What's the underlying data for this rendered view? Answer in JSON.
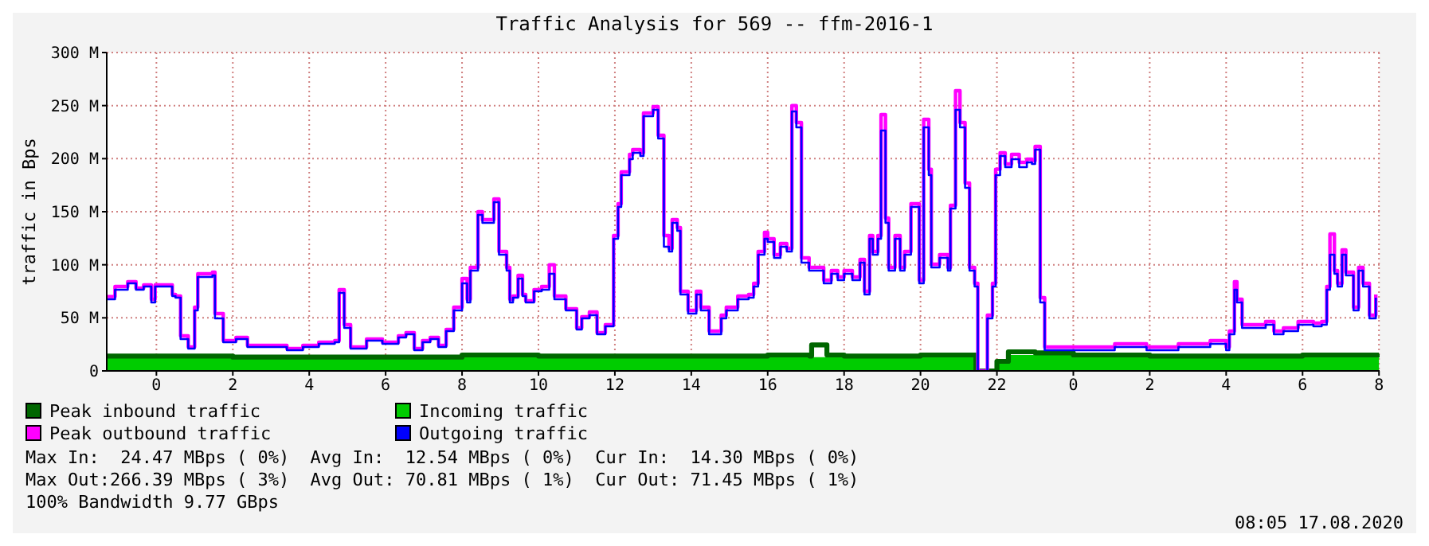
{
  "chart_data": {
    "type": "step",
    "title": "Traffic Analysis for 569 -- ffm-2016-1",
    "ylabel": "traffic in Bps",
    "xlim": [
      "2020-08-15T22:42",
      "2020-08-17T08:01"
    ],
    "xticks": [
      {
        "value": "2020-08-16T00:00",
        "label": "0"
      },
      {
        "value": "2020-08-16T02:00",
        "label": "2"
      },
      {
        "value": "2020-08-16T04:00",
        "label": "4"
      },
      {
        "value": "2020-08-16T06:00",
        "label": "6"
      },
      {
        "value": "2020-08-16T08:00",
        "label": "8"
      },
      {
        "value": "2020-08-16T10:00",
        "label": "10"
      },
      {
        "value": "2020-08-16T12:00",
        "label": "12"
      },
      {
        "value": "2020-08-16T14:00",
        "label": "14"
      },
      {
        "value": "2020-08-16T16:00",
        "label": "16"
      },
      {
        "value": "2020-08-16T18:00",
        "label": "18"
      },
      {
        "value": "2020-08-16T20:00",
        "label": "20"
      },
      {
        "value": "2020-08-16T22:00",
        "label": "22"
      },
      {
        "value": "2020-08-17T00:00",
        "label": "0"
      },
      {
        "value": "2020-08-17T02:00",
        "label": "2"
      },
      {
        "value": "2020-08-17T04:00",
        "label": "4"
      },
      {
        "value": "2020-08-17T06:00",
        "label": "6"
      },
      {
        "value": "2020-08-17T08:00",
        "label": "8"
      }
    ],
    "ylim": [
      0,
      300
    ],
    "yticks": [
      0,
      {
        "value": 50,
        "label": "50 M"
      },
      {
        "value": 100,
        "label": "100 M"
      },
      {
        "value": 150,
        "label": "150 M"
      },
      {
        "value": 200,
        "label": "200 M"
      },
      {
        "value": 250,
        "label": "250 M"
      },
      {
        "value": 300,
        "label": "300 M"
      }
    ],
    "grid": true,
    "legend": "bottom",
    "x": [
      "2020-08-15T22:43",
      "2020-08-15T22:55",
      "2020-08-15T23:15",
      "2020-08-15T23:28",
      "2020-08-15T23:40",
      "2020-08-15T23:52",
      "2020-08-15T23:58",
      "2020-08-16T00:25",
      "2020-08-16T00:30",
      "2020-08-16T00:38",
      "2020-08-16T00:50",
      "2020-08-16T01:00",
      "2020-08-16T01:05",
      "2020-08-16T01:28",
      "2020-08-16T01:32",
      "2020-08-16T01:45",
      "2020-08-16T02:05",
      "2020-08-16T02:23",
      "2020-08-16T02:47",
      "2020-08-16T03:25",
      "2020-08-16T03:50",
      "2020-08-16T04:15",
      "2020-08-16T04:40",
      "2020-08-16T04:47",
      "2020-08-16T04:55",
      "2020-08-16T05:05",
      "2020-08-16T05:30",
      "2020-08-16T05:55",
      "2020-08-16T06:20",
      "2020-08-16T06:32",
      "2020-08-16T06:45",
      "2020-08-16T06:58",
      "2020-08-16T07:10",
      "2020-08-16T07:23",
      "2020-08-16T07:35",
      "2020-08-16T07:47",
      "2020-08-16T08:00",
      "2020-08-16T08:08",
      "2020-08-16T08:13",
      "2020-08-16T08:25",
      "2020-08-16T08:32",
      "2020-08-16T08:50",
      "2020-08-16T08:58",
      "2020-08-16T09:10",
      "2020-08-16T09:15",
      "2020-08-16T09:20",
      "2020-08-16T09:28",
      "2020-08-16T09:35",
      "2020-08-16T09:40",
      "2020-08-16T09:53",
      "2020-08-16T10:05",
      "2020-08-16T10:17",
      "2020-08-16T10:25",
      "2020-08-16T10:43",
      "2020-08-16T11:00",
      "2020-08-16T11:08",
      "2020-08-16T11:20",
      "2020-08-16T11:32",
      "2020-08-16T11:45",
      "2020-08-16T11:58",
      "2020-08-16T12:05",
      "2020-08-16T12:10",
      "2020-08-16T12:23",
      "2020-08-16T12:28",
      "2020-08-16T12:40",
      "2020-08-16T12:45",
      "2020-08-16T13:00",
      "2020-08-16T13:08",
      "2020-08-16T13:17",
      "2020-08-16T13:25",
      "2020-08-16T13:30",
      "2020-08-16T13:38",
      "2020-08-16T13:43",
      "2020-08-16T13:55",
      "2020-08-16T14:08",
      "2020-08-16T14:15",
      "2020-08-16T14:28",
      "2020-08-16T14:40",
      "2020-08-16T14:47",
      "2020-08-16T14:55",
      "2020-08-16T15:05",
      "2020-08-16T15:13",
      "2020-08-16T15:30",
      "2020-08-16T15:38",
      "2020-08-16T15:45",
      "2020-08-16T15:55",
      "2020-08-16T16:00",
      "2020-08-16T16:10",
      "2020-08-16T16:20",
      "2020-08-16T16:30",
      "2020-08-16T16:38",
      "2020-08-16T16:45",
      "2020-08-16T16:53",
      "2020-08-16T17:05",
      "2020-08-16T17:17",
      "2020-08-16T17:28",
      "2020-08-16T17:40",
      "2020-08-16T17:50",
      "2020-08-16T18:00",
      "2020-08-16T18:13",
      "2020-08-16T18:25",
      "2020-08-16T18:32",
      "2020-08-16T18:40",
      "2020-08-16T18:45",
      "2020-08-16T18:53",
      "2020-08-16T18:58",
      "2020-08-16T19:05",
      "2020-08-16T19:10",
      "2020-08-16T19:20",
      "2020-08-16T19:28",
      "2020-08-16T19:35",
      "2020-08-16T19:45",
      "2020-08-16T19:53",
      "2020-08-16T19:58",
      "2020-08-16T20:05",
      "2020-08-16T20:13",
      "2020-08-16T20:17",
      "2020-08-16T20:30",
      "2020-08-16T20:43",
      "2020-08-16T20:47",
      "2020-08-16T20:55",
      "2020-08-16T21:02",
      "2020-08-16T21:10",
      "2020-08-16T21:17",
      "2020-08-16T21:25",
      "2020-08-16T21:30",
      "2020-08-16T21:40",
      "2020-08-16T21:45",
      "2020-08-16T21:53",
      "2020-08-16T21:58",
      "2020-08-16T22:05",
      "2020-08-16T22:13",
      "2020-08-16T22:23",
      "2020-08-16T22:35",
      "2020-08-16T22:47",
      "2020-08-16T22:55",
      "2020-08-16T23:00",
      "2020-08-16T23:08",
      "2020-08-16T23:15",
      "2020-08-16T23:50",
      "2020-08-17T00:40",
      "2020-08-17T01:05",
      "2020-08-17T01:55",
      "2020-08-17T02:45",
      "2020-08-17T03:35",
      "2020-08-17T04:00",
      "2020-08-17T04:05",
      "2020-08-17T04:13",
      "2020-08-17T04:17",
      "2020-08-17T04:25",
      "2020-08-17T05:02",
      "2020-08-17T05:15",
      "2020-08-17T05:30",
      "2020-08-17T05:53",
      "2020-08-17T06:17",
      "2020-08-17T06:30",
      "2020-08-17T06:38",
      "2020-08-17T06:43",
      "2020-08-17T06:50",
      "2020-08-17T06:55",
      "2020-08-17T07:02",
      "2020-08-17T07:08",
      "2020-08-17T07:20",
      "2020-08-17T07:28",
      "2020-08-17T07:35",
      "2020-08-17T07:45",
      "2020-08-17T07:55"
    ],
    "series": [
      {
        "name": "Peak inbound traffic",
        "color": "#006600",
        "x": [
          "2020-08-15T22:42",
          "2020-08-16T00:00",
          "2020-08-16T02:00",
          "2020-08-16T04:00",
          "2020-08-16T06:00",
          "2020-08-16T08:00",
          "2020-08-16T10:00",
          "2020-08-16T12:00",
          "2020-08-16T14:00",
          "2020-08-16T16:00",
          "2020-08-16T17:06",
          "2020-08-16T17:09",
          "2020-08-16T17:30",
          "2020-08-16T17:33",
          "2020-08-16T18:00",
          "2020-08-16T20:00",
          "2020-08-16T21:24",
          "2020-08-16T21:27",
          "2020-08-16T21:54",
          "2020-08-16T22:00",
          "2020-08-16T22:18",
          "2020-08-16T23:00",
          "2020-08-17T00:00",
          "2020-08-17T02:00",
          "2020-08-17T04:00",
          "2020-08-17T06:00",
          "2020-08-17T08:00"
        ],
        "values": [
          14,
          14,
          13,
          13,
          13,
          15,
          14,
          14,
          14,
          15,
          14,
          24.47,
          24.47,
          15,
          14,
          15,
          15,
          0,
          0,
          9,
          18,
          17,
          15,
          14,
          14,
          15,
          16
        ]
      },
      {
        "name": "Incoming traffic",
        "type": "area",
        "color": "#00cc00",
        "x": [
          "2020-08-15T22:42",
          "2020-08-16T00:00",
          "2020-08-16T02:00",
          "2020-08-16T04:00",
          "2020-08-16T06:00",
          "2020-08-16T08:00",
          "2020-08-16T10:00",
          "2020-08-16T12:00",
          "2020-08-16T14:00",
          "2020-08-16T16:00",
          "2020-08-16T18:00",
          "2020-08-16T20:00",
          "2020-08-16T21:24",
          "2020-08-16T21:27",
          "2020-08-16T21:54",
          "2020-08-16T22:00",
          "2020-08-16T22:18",
          "2020-08-16T23:00",
          "2020-08-17T00:00",
          "2020-08-17T02:00",
          "2020-08-17T04:00",
          "2020-08-17T06:00",
          "2020-08-17T08:00"
        ],
        "values": [
          13,
          13,
          12,
          12,
          12,
          13,
          12,
          12,
          12,
          13,
          12,
          13,
          13,
          0,
          0,
          8,
          15,
          16,
          13,
          12,
          12,
          13,
          14
        ]
      },
      {
        "name": "Peak outbound traffic",
        "color": "#ff00ff",
        "values": [
          70,
          79.5,
          84,
          78,
          81,
          67.5,
          81,
          72,
          70.5,
          33,
          22.5,
          60,
          91.5,
          93,
          54,
          28.5,
          31.5,
          24,
          24,
          21,
          24,
          27,
          28.5,
          76.5,
          43.5,
          22.5,
          30,
          27,
          33,
          36,
          21,
          28.5,
          31.5,
          24,
          39,
          60,
          87,
          67.5,
          97.5,
          150,
          142.5,
          162,
          112.5,
          97.5,
          67.5,
          70.5,
          90,
          72,
          66,
          76.5,
          79.5,
          100,
          70.5,
          58.5,
          40.5,
          51,
          55.5,
          36,
          43.5,
          127.5,
          157.5,
          187.5,
          204,
          208.5,
          205.5,
          243,
          249,
          222,
          127.5,
          115.5,
          142.5,
          135,
          75,
          57,
          75,
          60,
          37.5,
          37.5,
          52.5,
          60,
          60,
          70.5,
          72,
          82.5,
          112.5,
          130.5,
          124.5,
          109.5,
          120,
          115.5,
          250,
          234,
          106.5,
          97.5,
          97.5,
          85.5,
          94.5,
          88.5,
          94.5,
          88.5,
          105,
          75,
          127.5,
          112.5,
          127.5,
          241.5,
          144,
          97.5,
          127.5,
          97.5,
          112.5,
          157.5,
          157.5,
          85.5,
          237,
          190,
          100.5,
          109.5,
          97.5,
          156,
          264,
          234,
          177,
          97.5,
          82.5,
          0,
          0,
          52.5,
          82.5,
          190,
          205.5,
          195,
          204,
          196.5,
          199.5,
          198,
          211.5,
          69,
          22.5,
          22.5,
          22.5,
          25.5,
          22.5,
          25.5,
          28.5,
          22.5,
          37.5,
          84,
          67.5,
          43.5,
          46.5,
          37.5,
          40.5,
          46.5,
          45,
          46.5,
          79.5,
          129,
          94.5,
          82.5,
          114,
          93,
          60,
          97.5,
          82.5,
          52.5,
          72
        ]
      },
      {
        "name": "Outgoing traffic",
        "color": "#0000ff",
        "values": [
          67.5,
          76.5,
          82.5,
          76.5,
          79.5,
          64.5,
          79.5,
          70.5,
          69,
          30,
          21,
          57,
          88.5,
          90,
          49.5,
          27,
          30,
          22.5,
          22.5,
          19.5,
          22.5,
          25.5,
          27,
          73.5,
          40.5,
          21,
          28.5,
          25.5,
          31.5,
          34.5,
          19.5,
          27,
          30,
          22.5,
          37.5,
          57,
          82.5,
          64.5,
          94.5,
          147,
          139.5,
          159,
          109.5,
          94.5,
          64.5,
          69,
          87,
          70.5,
          64.5,
          75,
          76.5,
          91.5,
          67.5,
          57,
          39,
          49.5,
          52.5,
          34.5,
          42,
          124.5,
          154.5,
          184.5,
          199.5,
          205.5,
          202.5,
          240,
          246,
          219,
          117,
          112.5,
          139.5,
          132,
          72,
          54,
          72,
          57,
          34.5,
          34.5,
          49.5,
          57,
          57,
          67.5,
          69,
          79.5,
          109.5,
          124.5,
          121.5,
          106.5,
          117,
          112.5,
          244.5,
          229.5,
          102,
          94.5,
          94.5,
          82.5,
          91.5,
          85.5,
          91.5,
          85.5,
          102,
          72,
          124.5,
          109.5,
          124.5,
          226.5,
          139.5,
          94.5,
          124.5,
          94.5,
          109.5,
          154.5,
          154.5,
          82.5,
          229.5,
          184.5,
          97.5,
          106.5,
          94.5,
          153,
          246,
          229.5,
          172.5,
          94.5,
          79.5,
          0,
          0,
          49.5,
          79.5,
          184.5,
          202.5,
          192,
          199.5,
          192,
          196.5,
          195,
          208.5,
          64.5,
          19.5,
          19.5,
          19.5,
          22.5,
          19.5,
          22.5,
          25.5,
          19.5,
          34.5,
          76.5,
          64.5,
          40.5,
          43.5,
          34.5,
          37.5,
          43.5,
          42,
          43.5,
          76.5,
          109.5,
          91.5,
          79.5,
          109.5,
          90,
          57,
          94.5,
          79.5,
          49.5,
          69
        ]
      }
    ],
    "annotations": [
      "Max In:  24.47 MBps ( 0%)  Avg In:  12.54 MBps ( 0%)  Cur In:  14.30 MBps ( 0%)",
      "Max Out:266.39 MBps ( 3%)  Avg Out: 70.81 MBps ( 1%)  Cur Out: 71.45 MBps ( 1%)",
      "100% Bandwidth 9.77 GBps",
      "08:05 17.08.2020"
    ]
  }
}
